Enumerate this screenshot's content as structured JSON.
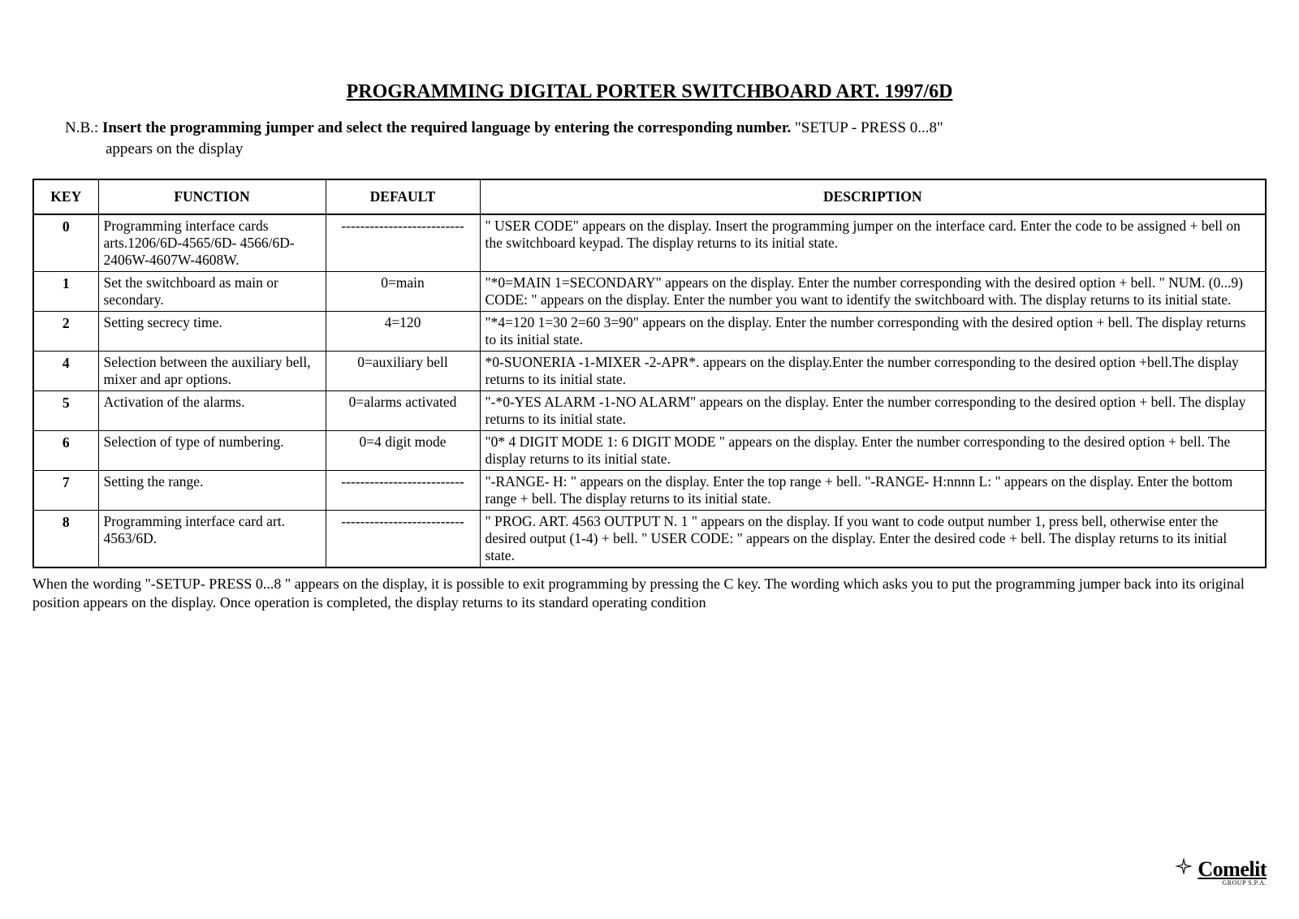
{
  "title": "PROGRAMMING DIGITAL  PORTER SWITCHBOARD ART. 1997/6D",
  "nb_prefix": "N.B.: ",
  "nb_bold": "Insert the programming jumper and select the required language by entering the corresponding number.",
  "nb_suffix": " \"SETUP  -  PRESS 0...8\"",
  "nb_line2": "appears on the display",
  "headers": {
    "key": "KEY",
    "function": "FUNCTION",
    "default": "DEFAULT",
    "description": "DESCRIPTION"
  },
  "rows": [
    {
      "key": "0",
      "function": "Programming interface cards arts.1206/6D-4565/6D-    4566/6D-2406W-4607W-4608W.",
      "default": "--------------------------",
      "description": "\" USER CODE\" appears on the display. Insert the programming jumper on the interface card. Enter the code to be assigned + bell on the switchboard keypad. The display returns to its initial state."
    },
    {
      "key": "1",
      "function": "Set the switchboard as main or secondary.",
      "default": "0=main",
      "description": "\"*0=MAIN  1=SECONDARY\" appears on the display. Enter the number corresponding with the desired option + bell. \" NUM. (0...9) CODE: \" appears on the display. Enter the number you want to identify the switchboard with. The display returns to its initial state."
    },
    {
      "key": "2",
      "function": "Setting secrecy time.",
      "default": "4=120",
      "description": "\"*4=120  1=30  2=60  3=90\" appears on the display. Enter the number corresponding with the desired option + bell. The display returns to its initial state."
    },
    {
      "key": "4",
      "function": "Selection between the auxiliary bell, mixer and apr options.",
      "default": "0=auxiliary bell",
      "description": "*0-SUONERIA   -1-MIXER  -2-APR*. appears on the display.Enter the number corresponding to the desired option +bell.The display returns to its initial state."
    },
    {
      "key": "5",
      "function": "Activation of the alarms.",
      "default": "0=alarms activated",
      "description": "\"-*0-YES ALARM  -1-NO ALARM\" appears on the display. Enter the number corresponding to the desired option + bell. The display returns to its initial state."
    },
    {
      "key": "6",
      "function": "Selection of type of numbering.",
      "default": "0=4 digit mode",
      "description": "\"0* 4 DIGIT MODE  1: 6 DIGIT MODE \" appears on the display. Enter the number corresponding to the desired option + bell. The display returns to its initial state."
    },
    {
      "key": "7",
      "function": "Setting the range.",
      "default": "--------------------------",
      "description": "\"-RANGE-  H: \" appears on the display. Enter the top range + bell. \"-RANGE-  H:nnnn  L: \" appears on the display. Enter the bottom range + bell. The display returns to its initial state."
    },
    {
      "key": "8",
      "function": "Programming interface card art. 4563/6D.",
      "default": "--------------------------",
      "description": "\" PROG. ART. 4563  OUTPUT N. 1 \" appears on the display. If you want to code output number 1, press bell, otherwise enter the desired output (1-4) + bell. \" USER CODE: \" appears on the display. Enter the desired code + bell. The display returns to its initial state."
    }
  ],
  "footer": "When the wording \"-SETUP-  PRESS 0...8 \" appears on the display, it is possible to exit programming by pressing the C key. The wording which asks you to put the programming jumper back into its original position appears on the display. Once operation is completed, the display returns to its standard operating condition",
  "logo_text": "Comelit",
  "logo_sub": "GROUP S.P.A."
}
